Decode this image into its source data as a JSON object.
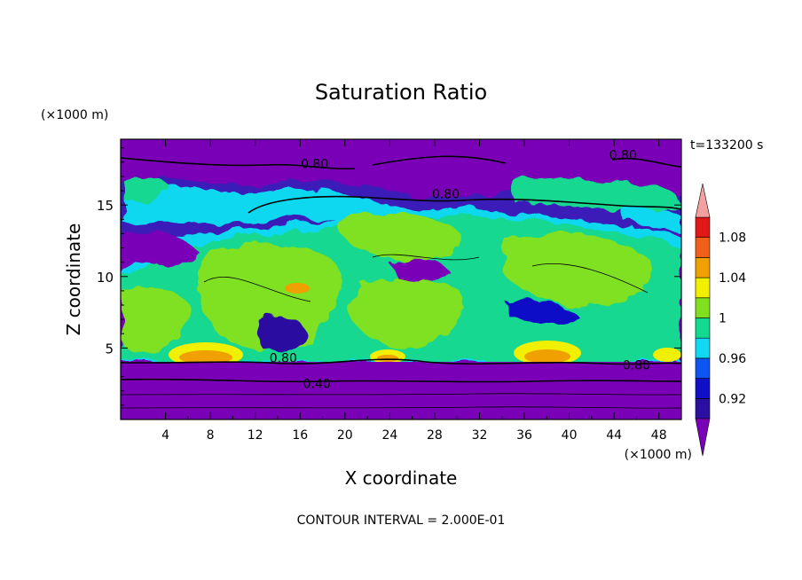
{
  "chart_data": {
    "type": "heatmap",
    "title": "Saturation Ratio",
    "xlabel": "X coordinate",
    "ylabel": "Z coordinate",
    "x_unit": "(×1000 m)",
    "y_unit": "(×1000 m)",
    "time_label": "t=133200 s",
    "footer": "CONTOUR INTERVAL = 2.000E-01",
    "xlim": [
      0,
      50
    ],
    "ylim": [
      0,
      19.6
    ],
    "x_ticks": [
      4,
      8,
      12,
      16,
      20,
      24,
      28,
      32,
      36,
      40,
      44,
      48
    ],
    "y_ticks": [
      5,
      10,
      15
    ],
    "contour_labels": [
      {
        "text": "0.80",
        "x": 17.3,
        "y": 17.9
      },
      {
        "text": "0.80",
        "x": 44.8,
        "y": 18.5
      },
      {
        "text": "0.80",
        "x": 29.0,
        "y": 15.8
      },
      {
        "text": "0.80",
        "x": 14.5,
        "y": 4.3
      },
      {
        "text": "0.80",
        "x": 46.0,
        "y": 3.8
      },
      {
        "text": "0.40",
        "x": 17.5,
        "y": 2.5
      }
    ],
    "colorbar": {
      "tick_labels": [
        "0.92",
        "0.96",
        "1",
        "1.04",
        "1.08"
      ],
      "levels": [
        0.9,
        0.92,
        0.94,
        0.96,
        0.98,
        1.0,
        1.02,
        1.04,
        1.06,
        1.08,
        1.1
      ],
      "colors": [
        "#2b0fa0",
        "#1010c8",
        "#0d55f0",
        "#10d8f0",
        "#12d890",
        "#80e020",
        "#f0f000",
        "#f0a000",
        "#f06018",
        "#e01818"
      ],
      "under_color": "#7a00b8",
      "over_color": "#f5a0a0",
      "extend": "both"
    }
  }
}
